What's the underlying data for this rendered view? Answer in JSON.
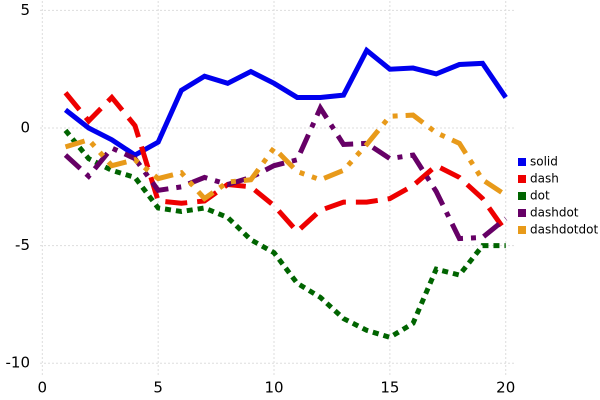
{
  "chart_data": {
    "type": "line",
    "x": [
      1,
      2,
      3,
      4,
      5,
      6,
      7,
      8,
      9,
      10,
      11,
      12,
      13,
      14,
      15,
      16,
      17,
      18,
      19,
      20
    ],
    "series": [
      {
        "name": "solid",
        "color": "#0000ee",
        "dash": [],
        "values": [
          0.77,
          0,
          -0.5,
          -1.15,
          -0.6,
          1.6,
          2.2,
          1.9,
          2.4,
          1.9,
          1.3,
          1.3,
          1.4,
          3.3,
          2.5,
          2.55,
          2.3,
          2.7,
          2.75,
          1.3
        ]
      },
      {
        "name": "dash",
        "color": "#ee0000",
        "dash": [
          22,
          10
        ],
        "values": [
          1.5,
          0.3,
          1.3,
          0.1,
          -3.1,
          -3.2,
          -3.1,
          -2.4,
          -2.5,
          -3.3,
          -4.4,
          -3.5,
          -3.15,
          -3.15,
          -3.0,
          -2.45,
          -1.6,
          -2.1,
          -3.0,
          -4.4
        ]
      },
      {
        "name": "dot",
        "color": "#006400",
        "dash": [
          6,
          5
        ],
        "values": [
          -0.1,
          -1.3,
          -1.8,
          -2.1,
          -3.4,
          -3.55,
          -3.4,
          -3.8,
          -4.75,
          -5.3,
          -6.6,
          -7.2,
          -8.1,
          -8.6,
          -8.9,
          -8.3,
          -6.0,
          -6.25,
          -5.0,
          -5.0
        ]
      },
      {
        "name": "dashdot",
        "color": "#660066",
        "dash": [
          20,
          8,
          5,
          8
        ],
        "values": [
          -1.15,
          -2.05,
          -0.85,
          -1.3,
          -2.65,
          -2.5,
          -2.1,
          -2.4,
          -2.1,
          -1.6,
          -1.35,
          0.85,
          -0.7,
          -0.65,
          -1.3,
          -1.15,
          -2.7,
          -4.7,
          -4.65,
          -3.85
        ]
      },
      {
        "name": "dashdotdot",
        "color": "#e89a1a",
        "dash": [
          20,
          8,
          5,
          8,
          5,
          8
        ],
        "values": [
          -0.8,
          -0.5,
          -1.6,
          -1.35,
          -2.15,
          -1.9,
          -3.0,
          -2.3,
          -2.2,
          -0.85,
          -1.85,
          -2.2,
          -1.8,
          -0.7,
          0.5,
          0.55,
          -0.2,
          -0.65,
          -2.2,
          -2.85
        ]
      }
    ],
    "xlim": [
      -0.1,
      20.4
    ],
    "ylim": [
      -10.5,
      5.4
    ],
    "xticks": [
      0,
      5,
      10,
      15,
      20
    ],
    "yticks": [
      -10,
      -5,
      0,
      5
    ],
    "grid": true,
    "legend": "right"
  }
}
